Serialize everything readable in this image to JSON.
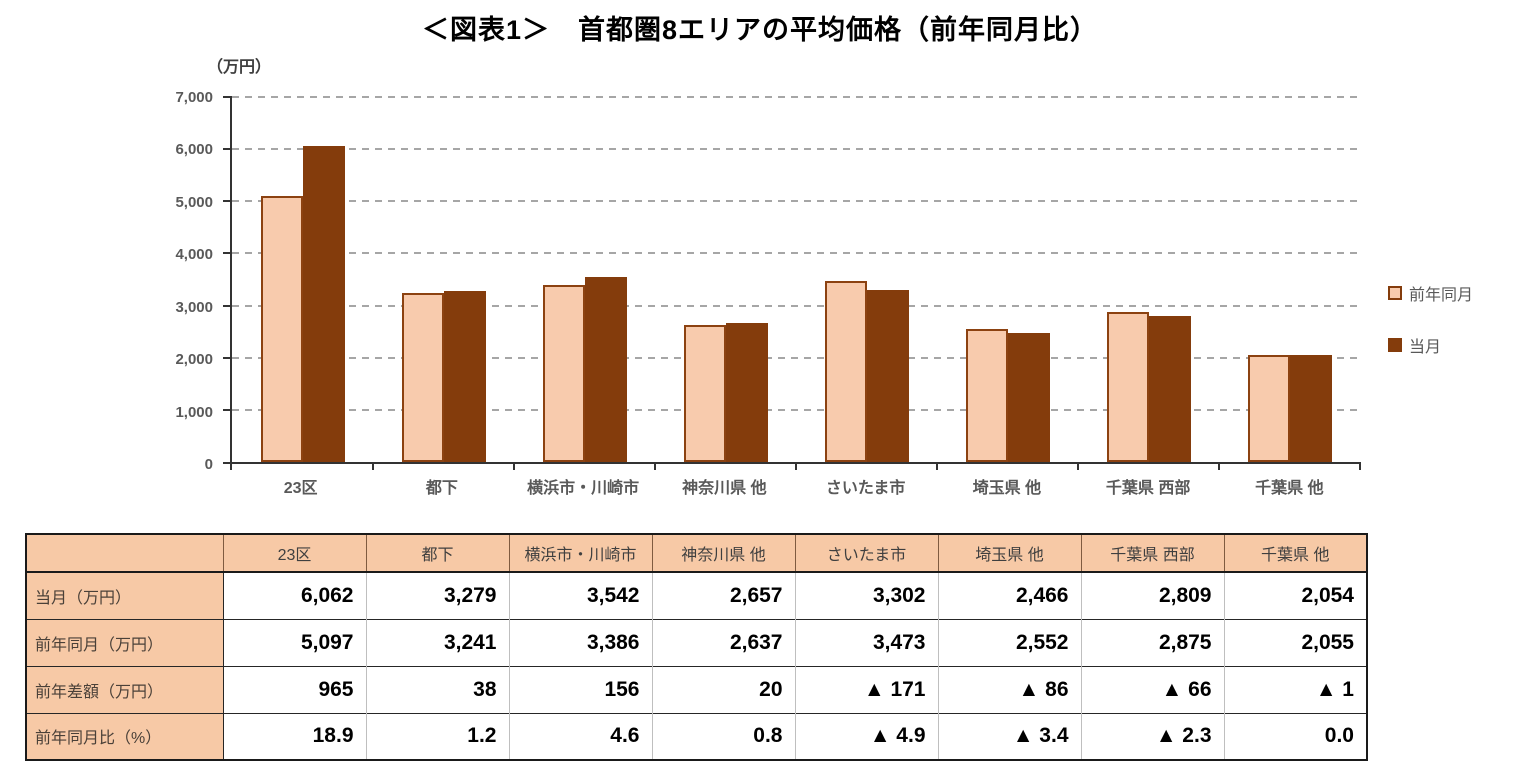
{
  "title": "＜図表1＞　首都圏8エリアの平均価格（前年同月比）",
  "chart": {
    "unit_label": "（万円）",
    "y_ticks": [
      "0",
      "1,000",
      "2,000",
      "3,000",
      "4,000",
      "5,000",
      "6,000",
      "7,000"
    ],
    "legend": [
      {
        "label": "前年同月",
        "swatch": "prev"
      },
      {
        "label": "当月",
        "swatch": "curr"
      }
    ]
  },
  "chart_data": {
    "type": "bar",
    "categories": [
      "23区",
      "都下",
      "横浜市・川崎市",
      "神奈川県 他",
      "さいたま市",
      "埼玉県 他",
      "千葉県 西部",
      "千葉県 他"
    ],
    "series": [
      {
        "name": "前年同月",
        "values": [
          5097,
          3241,
          3386,
          2637,
          3473,
          2552,
          2875,
          2055
        ]
      },
      {
        "name": "当月",
        "values": [
          6062,
          3279,
          3542,
          2657,
          3302,
          2466,
          2809,
          2054
        ]
      }
    ],
    "title": "＜図表1＞　首都圏8エリアの平均価格（前年同月比）",
    "xlabel": "",
    "ylabel": "（万円）",
    "ylim": [
      0,
      7000
    ],
    "y_step": 1000,
    "grid": true,
    "legend_position": "right"
  },
  "colors": {
    "bar_prev_fill": "#F8CBAD",
    "bar_prev_border": "#8C4211",
    "bar_curr_fill": "#843C0C",
    "grid": "#A6A6A6",
    "axis": "#333333",
    "axis_text": "#595959",
    "table_header_fill": "#F7C9A6"
  },
  "table": {
    "corner": "",
    "columns": [
      "23区",
      "都下",
      "横浜市・川崎市",
      "神奈川県 他",
      "さいたま市",
      "埼玉県 他",
      "千葉県 西部",
      "千葉県 他"
    ],
    "rows": [
      {
        "label": "当月（万円）",
        "values": [
          "6,062",
          "3,279",
          "3,542",
          "2,657",
          "3,302",
          "2,466",
          "2,809",
          "2,054"
        ]
      },
      {
        "label": "前年同月（万円）",
        "values": [
          "5,097",
          "3,241",
          "3,386",
          "2,637",
          "3,473",
          "2,552",
          "2,875",
          "2,055"
        ]
      },
      {
        "label": "前年差額（万円）",
        "values": [
          "965",
          "38",
          "156",
          "20",
          "▲ 171",
          "▲ 86",
          "▲ 66",
          "▲ 1"
        ]
      },
      {
        "label": "前年同月比（%）",
        "values": [
          "18.9",
          "1.2",
          "4.6",
          "0.8",
          "▲ 4.9",
          "▲ 3.4",
          "▲ 2.3",
          "0.0"
        ]
      }
    ]
  }
}
